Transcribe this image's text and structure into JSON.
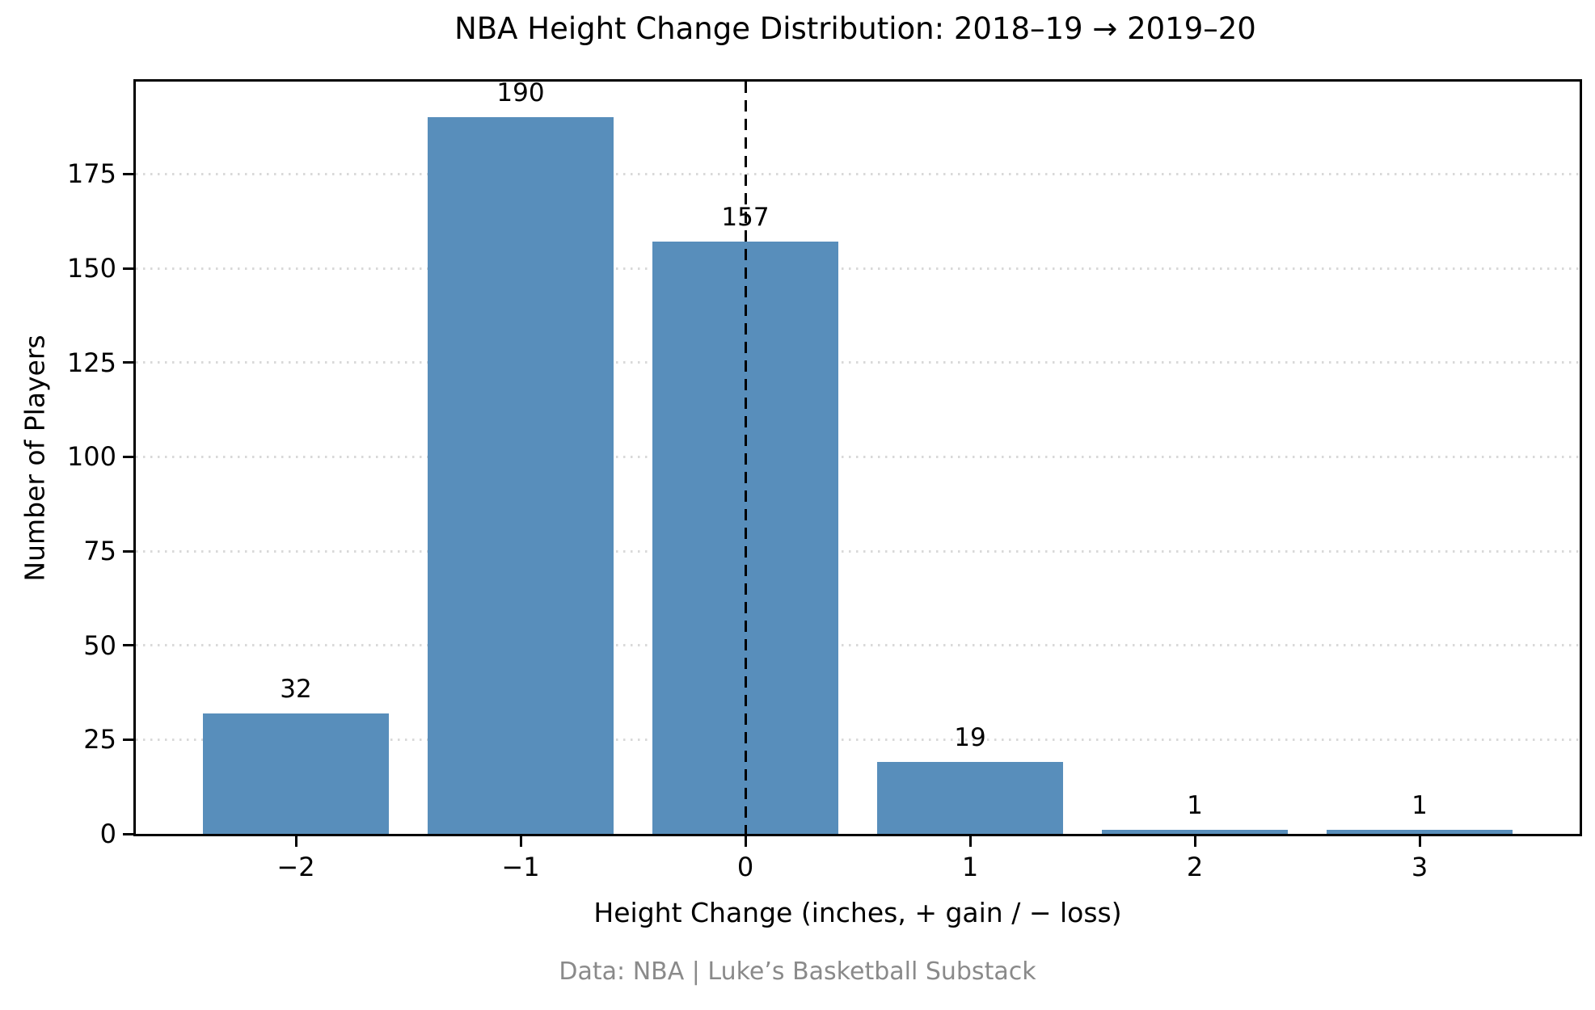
{
  "title": "NBA Height Change Distribution: 2018–19 → 2019–20",
  "footer": "Data: NBA  |  Luke’s Basketball Substack",
  "chart_data": {
    "type": "bar",
    "title": "NBA Height Change Distribution: 2018–19 → 2019–20",
    "xlabel": "Height Change (inches, + gain / − loss)",
    "ylabel": "Number of Players",
    "categories": [
      "−2",
      "−1",
      "0",
      "1",
      "2",
      "3"
    ],
    "values": [
      32,
      190,
      157,
      19,
      1,
      1
    ],
    "bar_labels": [
      "32",
      "190",
      "157",
      "19",
      "1",
      "1"
    ],
    "yticks": [
      0,
      25,
      50,
      75,
      100,
      125,
      150,
      175
    ],
    "ytick_labels": [
      "0",
      "25",
      "50",
      "75",
      "100",
      "125",
      "150",
      "175"
    ],
    "ylim": [
      0,
      199.5
    ],
    "grid": "horizontal-dotted",
    "legend": "none",
    "bar_color": "#588EBB",
    "grid_color": "#d9d9d9",
    "zero_line": {
      "at_category": "0",
      "style": "dashed",
      "color": "#000000"
    },
    "annotation_note": "vertical dashed line at height change = 0"
  }
}
